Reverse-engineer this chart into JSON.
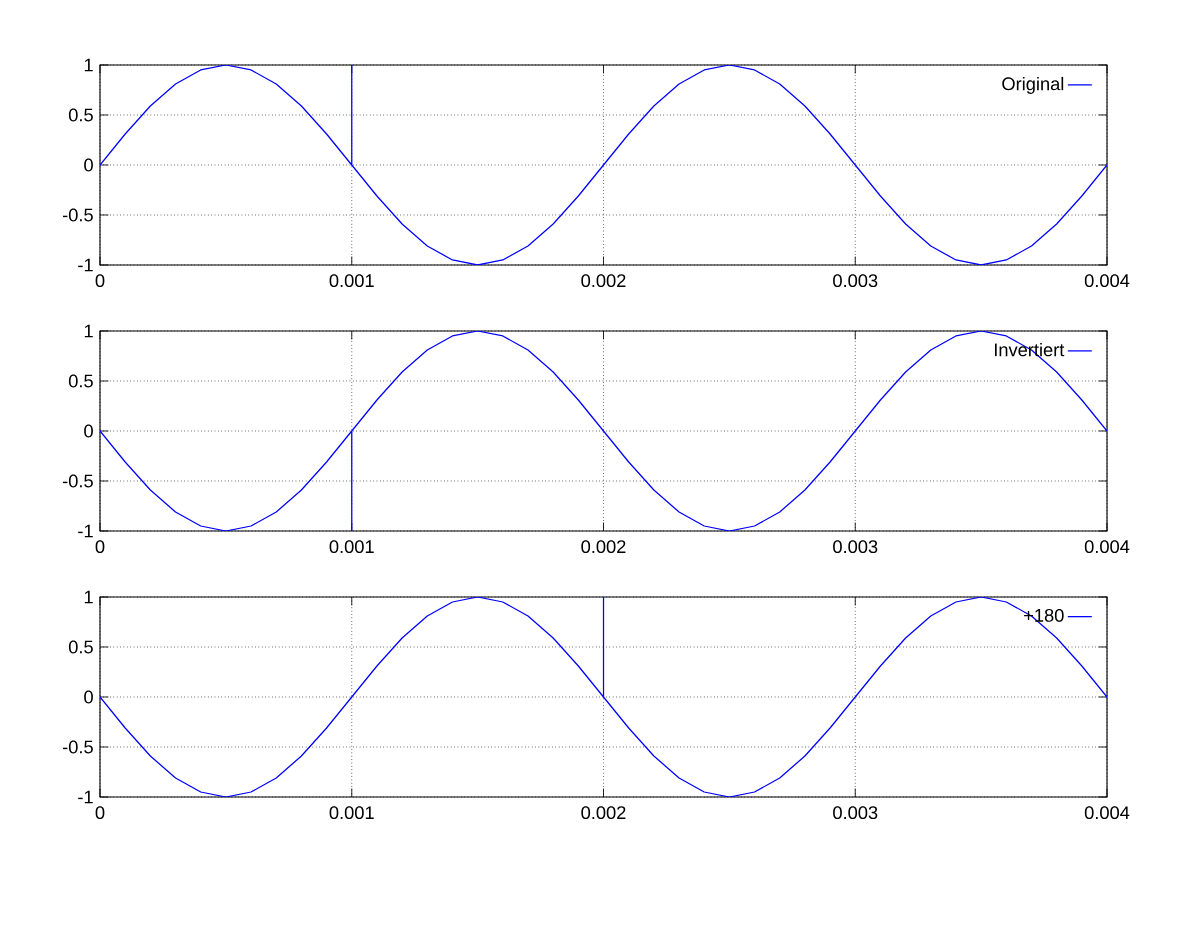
{
  "chart_data": [
    {
      "type": "line",
      "x": [
        0,
        0.0001,
        0.0002,
        0.0003,
        0.0004,
        0.0005,
        0.0006,
        0.0007,
        0.0008,
        0.0009,
        0.001,
        0.001,
        0.001,
        0.0011,
        0.0012,
        0.0013,
        0.0014,
        0.0015,
        0.0016,
        0.0017,
        0.0018,
        0.0019,
        0.002,
        0.0021,
        0.0022,
        0.0023,
        0.0024,
        0.0025,
        0.0026,
        0.0027,
        0.0028,
        0.0029,
        0.003,
        0.0031,
        0.0032,
        0.0033,
        0.0034,
        0.0035,
        0.0036,
        0.0037,
        0.0038,
        0.0039,
        0.004
      ],
      "series": [
        {
          "name": "Original",
          "color": "#0000ff",
          "values": [
            0,
            0.31,
            0.59,
            0.81,
            0.95,
            1,
            0.95,
            0.81,
            0.59,
            0.31,
            0,
            1,
            0,
            -0.31,
            -0.59,
            -0.81,
            -0.95,
            -1,
            -0.95,
            -0.81,
            -0.59,
            -0.31,
            0,
            0.31,
            0.59,
            0.81,
            0.95,
            1,
            0.95,
            0.81,
            0.59,
            0.31,
            0,
            -0.31,
            -0.59,
            -0.81,
            -0.95,
            -1,
            -0.95,
            -0.81,
            -0.59,
            -0.31,
            0
          ]
        }
      ],
      "xlim": [
        0,
        0.004
      ],
      "ylim": [
        -1,
        1
      ],
      "xticks": [
        0,
        0.001,
        0.002,
        0.003,
        0.004
      ],
      "yticks": [
        -1,
        -0.5,
        0,
        0.5,
        1
      ],
      "grid": true,
      "legend": "top right"
    },
    {
      "type": "line",
      "x": [
        0,
        0.0001,
        0.0002,
        0.0003,
        0.0004,
        0.0005,
        0.0006,
        0.0007,
        0.0008,
        0.0009,
        0.001,
        0.001,
        0.001,
        0.0011,
        0.0012,
        0.0013,
        0.0014,
        0.0015,
        0.0016,
        0.0017,
        0.0018,
        0.0019,
        0.002,
        0.0021,
        0.0022,
        0.0023,
        0.0024,
        0.0025,
        0.0026,
        0.0027,
        0.0028,
        0.0029,
        0.003,
        0.0031,
        0.0032,
        0.0033,
        0.0034,
        0.0035,
        0.0036,
        0.0037,
        0.0038,
        0.0039,
        0.004
      ],
      "series": [
        {
          "name": "Invertiert",
          "color": "#0000ff",
          "values": [
            0,
            -0.31,
            -0.59,
            -0.81,
            -0.95,
            -1,
            -0.95,
            -0.81,
            -0.59,
            -0.31,
            0,
            -1,
            0,
            0.31,
            0.59,
            0.81,
            0.95,
            1,
            0.95,
            0.81,
            0.59,
            0.31,
            0,
            -0.31,
            -0.59,
            -0.81,
            -0.95,
            -1,
            -0.95,
            -0.81,
            -0.59,
            -0.31,
            0,
            0.31,
            0.59,
            0.81,
            0.95,
            1,
            0.95,
            0.81,
            0.59,
            0.31,
            0
          ]
        }
      ],
      "xlim": [
        0,
        0.004
      ],
      "ylim": [
        -1,
        1
      ],
      "xticks": [
        0,
        0.001,
        0.002,
        0.003,
        0.004
      ],
      "yticks": [
        -1,
        -0.5,
        0,
        0.5,
        1
      ],
      "grid": true,
      "legend": "top right"
    },
    {
      "type": "line",
      "x": [
        0,
        0.0001,
        0.0002,
        0.0003,
        0.0004,
        0.0005,
        0.0006,
        0.0007,
        0.0008,
        0.0009,
        0.001,
        0.0011,
        0.0012,
        0.0013,
        0.0014,
        0.0015,
        0.0016,
        0.0017,
        0.0018,
        0.0019,
        0.002,
        0.002,
        0.002,
        0.0021,
        0.0022,
        0.0023,
        0.0024,
        0.0025,
        0.0026,
        0.0027,
        0.0028,
        0.0029,
        0.003,
        0.0031,
        0.0032,
        0.0033,
        0.0034,
        0.0035,
        0.0036,
        0.0037,
        0.0038,
        0.0039,
        0.004
      ],
      "series": [
        {
          "name": "+180",
          "color": "#0000ff",
          "values": [
            0,
            -0.31,
            -0.59,
            -0.81,
            -0.95,
            -1,
            -0.95,
            -0.81,
            -0.59,
            -0.31,
            0,
            0.31,
            0.59,
            0.81,
            0.95,
            1,
            0.95,
            0.81,
            0.59,
            0.31,
            0,
            1,
            0,
            -0.31,
            -0.59,
            -0.81,
            -0.95,
            -1,
            -0.95,
            -0.81,
            -0.59,
            -0.31,
            0,
            0.31,
            0.59,
            0.81,
            0.95,
            1,
            0.95,
            0.81,
            0.59,
            0.31,
            0
          ]
        }
      ],
      "xlim": [
        0,
        0.004
      ],
      "ylim": [
        -1,
        1
      ],
      "xticks": [
        0,
        0.001,
        0.002,
        0.003,
        0.004
      ],
      "yticks": [
        -1,
        -0.5,
        0,
        0.5,
        1
      ],
      "grid": true,
      "legend": "top right"
    }
  ]
}
